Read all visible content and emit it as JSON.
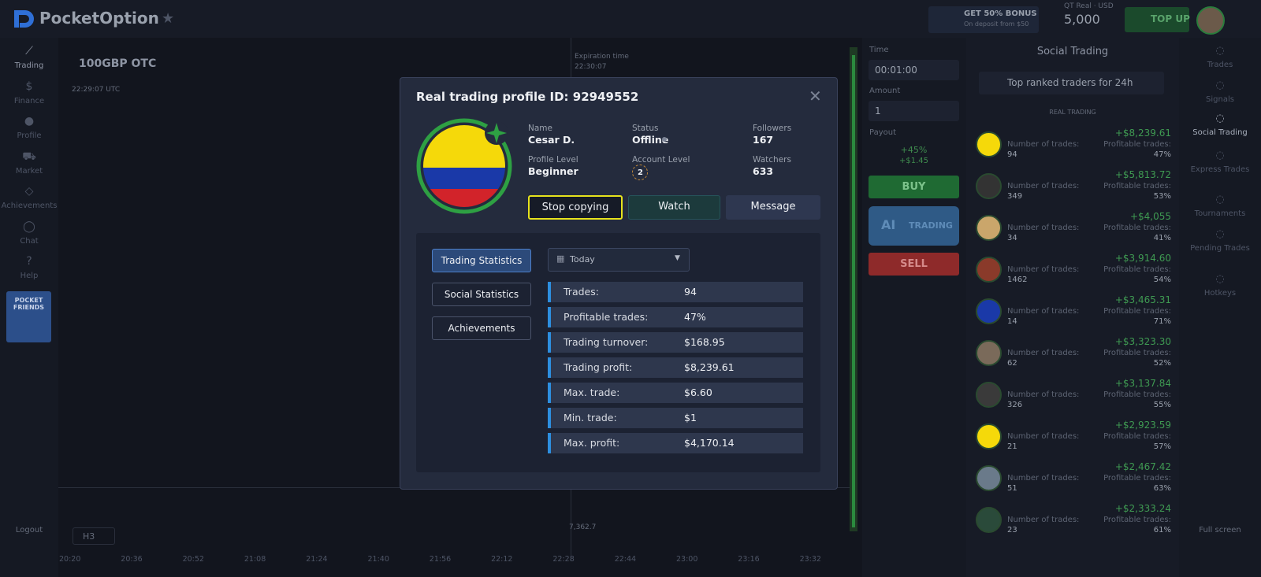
{
  "header": {
    "logo": "PocketOption",
    "bonus_title": "GET 50% BONUS",
    "bonus_sub": "On deposit from $50",
    "account_type": "QT Real · USD",
    "balance": "5,000",
    "top_up": "TOP UP"
  },
  "sidebar": {
    "items": [
      "Trading",
      "Finance",
      "Profile",
      "Market",
      "Achievements",
      "Chat",
      "Help"
    ],
    "promo": "POCKET FRIENDS",
    "logout": "Logout"
  },
  "chart": {
    "asset": "100GBP OTC",
    "clock": "22:29:07 UTC",
    "expiration_label": "Expiration time",
    "expiration": "22:30:07",
    "price": "7,362.7",
    "timeframe": "H3",
    "times": [
      "20:20",
      "20:36",
      "20:52",
      "21:08",
      "21:24",
      "21:40",
      "21:56",
      "22:12",
      "22:28",
      "22:44",
      "23:00",
      "23:16",
      "23:32"
    ]
  },
  "trade_panel": {
    "time_label": "Time",
    "time": "00:01:00",
    "amount_label": "Amount",
    "amount": "1",
    "payout_label": "Payout",
    "payout_pct": "+45%",
    "payout_amount": "+$1.45",
    "buy": "BUY",
    "ai": "AI",
    "ai_trading": "TRADING",
    "sell": "SELL"
  },
  "social": {
    "title": "Social Trading",
    "filter": "Top ranked traders for 24h",
    "section": "REAL TRADING",
    "trades_label": "Number of trades:",
    "profitable_label": "Profitable trades:",
    "traders": [
      {
        "profit": "+$8,239.61",
        "trades": "94",
        "profitable": "47%"
      },
      {
        "profit": "+$5,813.72",
        "trades": "349",
        "profitable": "53%"
      },
      {
        "profit": "+$4,055",
        "trades": "34",
        "profitable": "41%"
      },
      {
        "profit": "+$3,914.60",
        "trades": "1462",
        "profitable": "54%"
      },
      {
        "profit": "+$3,465.31",
        "trades": "14",
        "profitable": "71%"
      },
      {
        "profit": "+$3,323.30",
        "trades": "62",
        "profitable": "52%"
      },
      {
        "profit": "+$3,137.84",
        "trades": "326",
        "profitable": "55%"
      },
      {
        "profit": "+$2,923.59",
        "trades": "21",
        "profitable": "57%"
      },
      {
        "profit": "+$2,467.42",
        "trades": "51",
        "profitable": "63%"
      },
      {
        "profit": "+$2,333.24",
        "trades": "23",
        "profitable": "61%"
      }
    ]
  },
  "right_nav": {
    "items": [
      "Trades",
      "Signals",
      "Social Trading",
      "Express Trades",
      "Tournaments",
      "Pending Trades",
      "Hotkeys"
    ],
    "full_screen": "Full screen"
  },
  "modal": {
    "title": "Real trading profile ID: 92949552",
    "info": [
      {
        "label": "Name",
        "value": "Cesar D."
      },
      {
        "label": "Status",
        "value": "Offline"
      },
      {
        "label": "Followers",
        "value": "167"
      },
      {
        "label": "Profile Level",
        "value": "Beginner"
      },
      {
        "label": "Account Level",
        "value": "2"
      },
      {
        "label": "Watchers",
        "value": "633"
      }
    ],
    "buttons": [
      "Stop copying",
      "Watch",
      "Message"
    ],
    "tabs": [
      "Trading Statistics",
      "Social Statistics",
      "Achievements"
    ],
    "period": "Today",
    "stats": [
      {
        "label": "Trades:",
        "value": "94"
      },
      {
        "label": "Profitable trades:",
        "value": "47%"
      },
      {
        "label": "Trading turnover:",
        "value": "$168.95"
      },
      {
        "label": "Trading profit:",
        "value": "$8,239.61"
      },
      {
        "label": "Max. trade:",
        "value": "$6.60"
      },
      {
        "label": "Min. trade:",
        "value": "$1"
      },
      {
        "label": "Max. profit:",
        "value": "$4,170.14"
      }
    ]
  }
}
